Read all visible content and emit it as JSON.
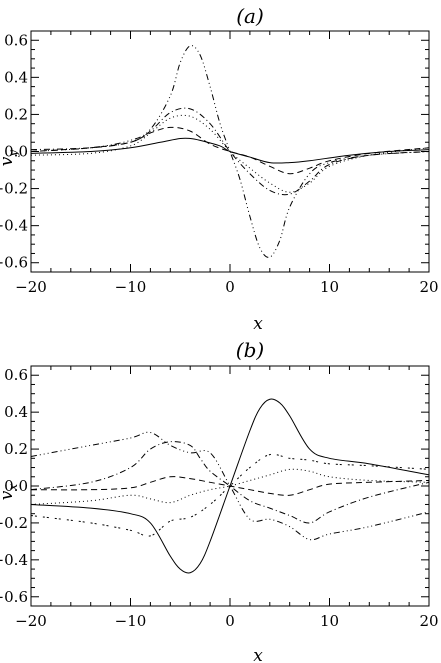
{
  "chart_data": [
    {
      "type": "line",
      "title": "(a)",
      "xlabel": "x",
      "ylabel": "v_y",
      "ylabel_main": "v",
      "ylabel_sub": "y",
      "xlim": [
        -20,
        20
      ],
      "ylim": [
        -0.65,
        0.65
      ],
      "xticks": [
        -20,
        -10,
        0,
        10,
        20
      ],
      "yticks": [
        0.6,
        0.4,
        0.2,
        0.0,
        -0.2,
        -0.4,
        -0.6
      ],
      "xtick_labels": [
        "−20",
        "−10",
        "0",
        "10",
        "20"
      ],
      "ytick_labels": [
        "0.6",
        "0.4",
        "0.2",
        "0.0",
        "−0.2",
        "−0.4",
        "−0.6"
      ],
      "grid": false,
      "series": [
        {
          "dash": "",
          "x": [
            -20,
            -14,
            -10,
            -7,
            -5,
            -4,
            -3,
            -1,
            0,
            2,
            4,
            6,
            8,
            12,
            16,
            20
          ],
          "y": [
            -0.01,
            0.0,
            0.02,
            0.05,
            0.07,
            0.07,
            0.06,
            0.03,
            0.0,
            -0.03,
            -0.06,
            -0.06,
            -0.05,
            -0.02,
            0.0,
            0.01
          ]
        },
        {
          "dash": "6 4",
          "x": [
            -20,
            -14,
            -10,
            -8,
            -6,
            -4,
            -2,
            0,
            2,
            4,
            6,
            8,
            10,
            14,
            20
          ],
          "y": [
            0.0,
            0.02,
            0.05,
            0.1,
            0.13,
            0.11,
            0.04,
            0.0,
            -0.03,
            -0.08,
            -0.12,
            -0.09,
            -0.05,
            -0.01,
            0.02
          ]
        },
        {
          "dash": "1 3",
          "x": [
            -20,
            -14,
            -10,
            -8,
            -6,
            -4,
            -2,
            0,
            2,
            4,
            6,
            8,
            10,
            14,
            20
          ],
          "y": [
            -0.02,
            -0.01,
            0.03,
            0.1,
            0.18,
            0.19,
            0.12,
            0.0,
            -0.09,
            -0.17,
            -0.22,
            -0.17,
            -0.08,
            -0.02,
            0.02
          ]
        },
        {
          "dash": "6 3 1 3",
          "x": [
            -20,
            -14,
            -10,
            -8,
            -6,
            -4,
            -2,
            0,
            2,
            4,
            6,
            8,
            10,
            14,
            20
          ],
          "y": [
            0.01,
            0.02,
            0.05,
            0.11,
            0.21,
            0.23,
            0.15,
            0.0,
            -0.12,
            -0.21,
            -0.23,
            -0.16,
            -0.07,
            -0.02,
            0.0
          ]
        },
        {
          "dash": "6 3 1 3 1 3 1 3",
          "x": [
            -20,
            -14,
            -10,
            -8,
            -6,
            -5,
            -4,
            -3,
            -2,
            -1,
            0,
            1,
            2,
            3,
            4,
            5,
            6,
            8,
            10,
            14,
            20
          ],
          "y": [
            0.0,
            0.02,
            0.06,
            0.12,
            0.3,
            0.48,
            0.57,
            0.52,
            0.35,
            0.15,
            0.0,
            -0.15,
            -0.35,
            -0.52,
            -0.57,
            -0.48,
            -0.3,
            -0.12,
            -0.06,
            -0.02,
            0.0
          ]
        }
      ]
    },
    {
      "type": "line",
      "title": "(b)",
      "xlabel": "x",
      "ylabel": "v_x",
      "ylabel_main": "v",
      "ylabel_sub": "x",
      "xlim": [
        -20,
        20
      ],
      "ylim": [
        -0.65,
        0.65
      ],
      "xticks": [
        -20,
        -10,
        0,
        10,
        20
      ],
      "yticks": [
        0.6,
        0.4,
        0.2,
        0.0,
        -0.2,
        -0.4,
        -0.6
      ],
      "xtick_labels": [
        "−20",
        "−10",
        "0",
        "10",
        "20"
      ],
      "ytick_labels": [
        "0.6",
        "0.4",
        "0.2",
        "0.0",
        "−0.2",
        "−0.4",
        "−0.6"
      ],
      "grid": false,
      "series": [
        {
          "dash": "",
          "x": [
            -20,
            -14,
            -10,
            -8,
            -6,
            -5,
            -4,
            -3,
            -2,
            0,
            2,
            3,
            4,
            5,
            6,
            8,
            10,
            14,
            20
          ],
          "y": [
            -0.1,
            -0.12,
            -0.15,
            -0.2,
            -0.38,
            -0.45,
            -0.47,
            -0.42,
            -0.3,
            0.0,
            0.3,
            0.42,
            0.47,
            0.45,
            0.38,
            0.2,
            0.15,
            0.12,
            0.06
          ]
        },
        {
          "dash": "6 4",
          "x": [
            -20,
            -14,
            -10,
            -8,
            -6,
            -4,
            -2,
            0,
            2,
            4,
            6,
            8,
            10,
            14,
            20
          ],
          "y": [
            -0.02,
            -0.02,
            -0.01,
            0.02,
            0.05,
            0.04,
            0.02,
            0.0,
            -0.02,
            -0.04,
            -0.05,
            -0.02,
            0.01,
            0.02,
            0.03
          ]
        },
        {
          "dash": "1 3",
          "x": [
            -20,
            -14,
            -10,
            -8,
            -6,
            -4,
            -2,
            0,
            2,
            4,
            6,
            8,
            10,
            14,
            20
          ],
          "y": [
            -0.1,
            -0.08,
            -0.05,
            -0.07,
            -0.09,
            -0.05,
            -0.02,
            0.0,
            0.03,
            0.06,
            0.09,
            0.08,
            0.05,
            0.03,
            0.02
          ]
        },
        {
          "dash": "6 3 1 3",
          "x": [
            -20,
            -14,
            -10,
            -8,
            -6,
            -4,
            -3,
            -2,
            0,
            2,
            4,
            6,
            8,
            10,
            14,
            20
          ],
          "y": [
            -0.02,
            0.02,
            0.1,
            0.2,
            0.24,
            0.22,
            0.15,
            0.08,
            0.0,
            -0.08,
            -0.12,
            -0.16,
            -0.2,
            -0.14,
            -0.06,
            0.02
          ]
        },
        {
          "dash": "6 3 1 3 1 3 1 3",
          "x": [
            -20,
            -14,
            -10,
            -8,
            -6,
            -4,
            -2,
            0,
            2,
            4,
            6,
            8,
            10,
            14,
            20
          ],
          "y": [
            0.16,
            0.22,
            0.26,
            0.29,
            0.22,
            0.18,
            0.18,
            0.0,
            -0.18,
            -0.18,
            -0.22,
            -0.29,
            -0.26,
            -0.22,
            -0.14
          ]
        },
        {
          "dash": "2 2 2 6",
          "x": [
            -20,
            -14,
            -10,
            -8,
            -6,
            -4,
            -2,
            0,
            2,
            4,
            6,
            8,
            10,
            14,
            20
          ],
          "y": [
            -0.16,
            -0.2,
            -0.24,
            -0.27,
            -0.19,
            -0.17,
            -0.1,
            0.0,
            0.1,
            0.17,
            0.15,
            0.14,
            0.12,
            0.11,
            0.09
          ]
        }
      ]
    }
  ]
}
